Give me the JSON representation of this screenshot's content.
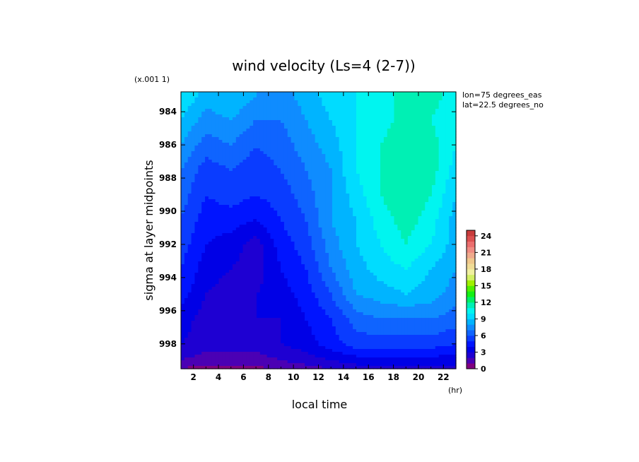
{
  "chart_data": {
    "type": "heatmap",
    "title": "wind velocity (Ls=4 (2-7))",
    "xlabel": "local time",
    "x_unit": "(hr)",
    "ylabel": "sigma at layer midpoints",
    "y_scale_note": "(x.001 1)",
    "annotations": [
      "lon=75 degrees_eas",
      "lat=22.5 degrees_no"
    ],
    "x_ticks": [
      2,
      4,
      6,
      8,
      10,
      12,
      14,
      16,
      18,
      20,
      22
    ],
    "y_ticks": [
      984,
      986,
      988,
      990,
      992,
      994,
      996,
      998
    ],
    "xlim": [
      1,
      23
    ],
    "ylim": [
      999.5,
      982.8
    ],
    "x": [
      1,
      3,
      5,
      7,
      9,
      11,
      13,
      15,
      17,
      19,
      21,
      23
    ],
    "y": [
      983.0,
      984.5,
      986.0,
      987.5,
      989.0,
      990.5,
      992.0,
      993.5,
      995.0,
      996.5,
      998.0,
      999.0,
      999.5
    ],
    "values": [
      [
        10.0,
        8.5,
        9.0,
        8.0,
        7.5,
        8.5,
        9.5,
        10.0,
        10.5,
        11.5,
        11.5,
        10.5
      ],
      [
        9.0,
        7.5,
        8.0,
        7.0,
        7.0,
        8.0,
        9.0,
        10.0,
        10.5,
        11.5,
        11.0,
        10.0
      ],
      [
        8.0,
        6.5,
        7.0,
        6.0,
        6.5,
        7.5,
        8.5,
        10.0,
        11.0,
        12.0,
        11.5,
        10.0
      ],
      [
        7.0,
        5.5,
        6.0,
        5.5,
        6.0,
        7.0,
        8.0,
        10.0,
        11.0,
        12.0,
        11.5,
        9.5
      ],
      [
        6.5,
        5.0,
        5.5,
        5.0,
        5.5,
        6.5,
        8.0,
        9.5,
        11.0,
        12.0,
        11.0,
        9.0
      ],
      [
        6.0,
        4.5,
        4.5,
        4.0,
        5.0,
        6.0,
        8.0,
        9.0,
        10.5,
        11.5,
        10.5,
        8.5
      ],
      [
        5.5,
        4.0,
        3.5,
        2.5,
        4.5,
        5.5,
        7.5,
        9.0,
        10.0,
        11.0,
        10.0,
        8.5
      ],
      [
        5.0,
        3.5,
        3.0,
        2.5,
        4.0,
        5.0,
        7.0,
        8.5,
        9.5,
        10.0,
        9.0,
        8.0
      ],
      [
        4.5,
        3.0,
        2.5,
        3.0,
        3.5,
        4.5,
        6.0,
        8.0,
        8.5,
        9.0,
        8.5,
        7.5
      ],
      [
        3.5,
        2.5,
        2.5,
        3.0,
        3.0,
        4.0,
        5.0,
        6.5,
        7.0,
        7.0,
        7.0,
        6.5
      ],
      [
        3.0,
        2.5,
        2.5,
        2.5,
        3.0,
        3.5,
        4.5,
        5.5,
        5.5,
        5.5,
        5.5,
        5.0
      ],
      [
        2.0,
        1.5,
        1.5,
        1.5,
        2.0,
        2.5,
        3.0,
        3.5,
        3.5,
        3.5,
        3.5,
        3.5
      ],
      [
        1.0,
        0.5,
        0.5,
        0.8,
        1.0,
        1.5,
        2.0,
        2.5,
        2.5,
        2.5,
        2.5,
        2.5
      ]
    ],
    "colorbar": {
      "ticks": [
        0,
        3,
        6,
        9,
        12,
        15,
        18,
        21,
        24
      ],
      "min": 0,
      "max": 25,
      "step": 1,
      "colors": [
        "#800080",
        "#4b00b4",
        "#1e00d2",
        "#0000e6",
        "#0014ff",
        "#0a3cff",
        "#0f64ff",
        "#0f8cff",
        "#00b4ff",
        "#00dcff",
        "#00f5f0",
        "#00f0b4",
        "#00f064",
        "#14f014",
        "#50f000",
        "#a0f000",
        "#d2f064",
        "#f0f0a0",
        "#f0dc96",
        "#f0c88c",
        "#f0aa8c",
        "#f08c82",
        "#eb6e6e",
        "#dc5050",
        "#c83c3c"
      ]
    },
    "grid": false
  }
}
